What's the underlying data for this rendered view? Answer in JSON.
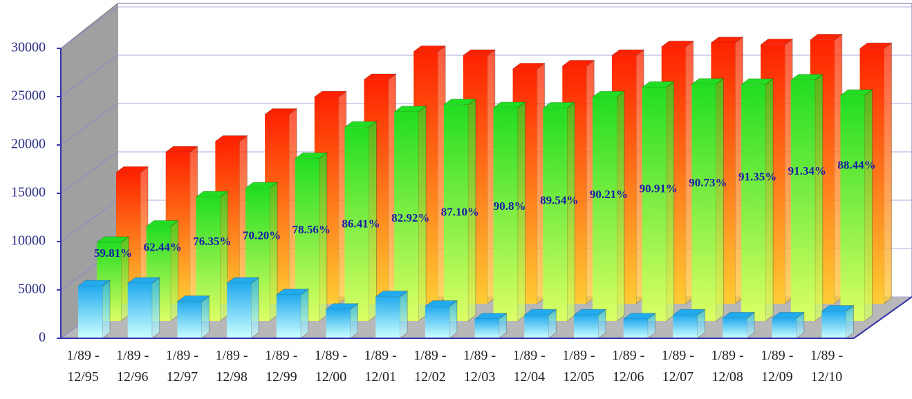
{
  "chart_data": {
    "type": "bar3d",
    "categories": [
      "1/89 - 12/95",
      "1/89 - 12/96",
      "1/89 - 12/97",
      "1/89 - 12/98",
      "1/89 - 12/99",
      "1/89 - 12/00",
      "1/89 - 12/01",
      "1/89 - 12/02",
      "1/89 - 12/03",
      "1/89 - 12/04",
      "1/89 - 12/05",
      "1/89 - 12/06",
      "1/89 - 12/07",
      "1/89 - 12/08",
      "1/89 - 12/09",
      "1/89 - 12/10"
    ],
    "series": [
      {
        "color": "#ff2200",
        "values": [
          13600,
          15700,
          16800,
          19600,
          21400,
          23200,
          26100,
          25700,
          24300,
          24600,
          25700,
          26600,
          27000,
          26800,
          27300,
          26400
        ]
      },
      {
        "color": "#22dd22",
        "values": [
          8130,
          9800,
          12830,
          13760,
          16810,
          20050,
          21640,
          22380,
          22060,
          22030,
          23180,
          24180,
          24500,
          24480,
          24940,
          23350
        ]
      },
      {
        "color": "#22aaee",
        "values": [
          5400,
          5700,
          3800,
          5700,
          4500,
          3000,
          4300,
          3300,
          2000,
          2400,
          2400,
          2000,
          2400,
          2100,
          2100,
          2800
        ]
      }
    ],
    "annotations": [
      "59.81%",
      "62.44%",
      "76.35%",
      "70.20%",
      "78.56%",
      "86.41%",
      "82.92%",
      "87.10%",
      "90.8%",
      "89.54%",
      "90.21%",
      "90.91%",
      "90.73%",
      "91.35%",
      "91.34%",
      "88.44%"
    ],
    "ylim": [
      0,
      30000
    ],
    "yticks": [
      0,
      5000,
      10000,
      15000,
      20000,
      25000,
      30000
    ],
    "grid": true
  }
}
